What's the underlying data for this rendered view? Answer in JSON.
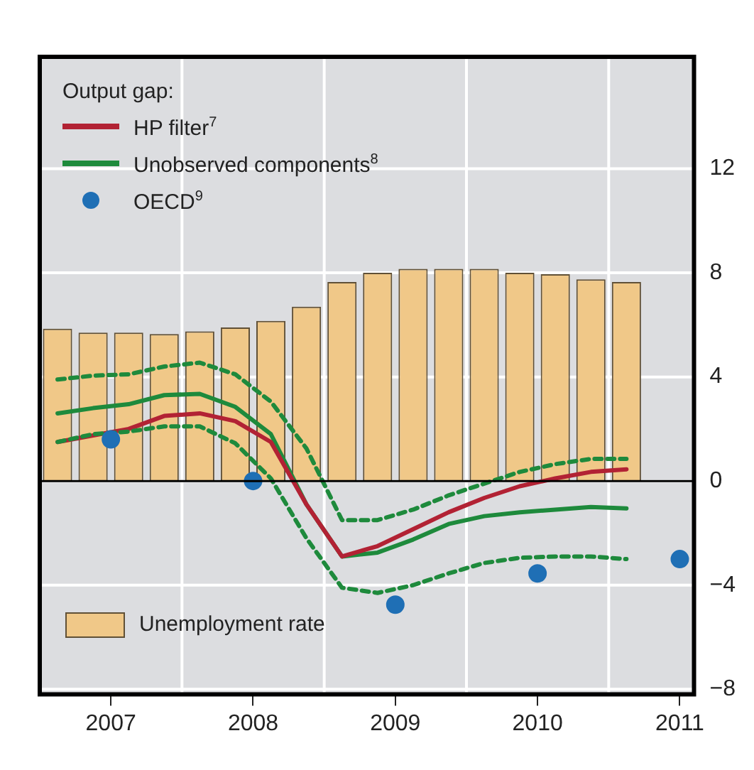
{
  "chart_data": {
    "type": "bar",
    "legend_title": "Output gap:",
    "legend": "left",
    "grid": true,
    "x": [
      2007.125,
      2007.375,
      2007.625,
      2007.875,
      2008.125,
      2008.375,
      2008.625,
      2008.875,
      2009.125,
      2009.375,
      2009.625,
      2009.875,
      2010.125,
      2010.375,
      2010.625,
      2010.875,
      2011.125
    ],
    "xlim": [
      2007,
      2011.6
    ],
    "xticks": [
      {
        "value": 2007.5,
        "label": "2007"
      },
      {
        "value": 2008.5,
        "label": "2008"
      },
      {
        "value": 2009.5,
        "label": "2009"
      },
      {
        "value": 2010.5,
        "label": "2010"
      },
      {
        "value": 2011.5,
        "label": "2011"
      }
    ],
    "ylim": [
      -8.2,
      16.3
    ],
    "yticks": [
      -8,
      -4,
      0,
      4,
      8,
      12
    ],
    "series": [
      {
        "name": "Unemployment rate",
        "color": "#f0c888",
        "values": [
          5.85,
          5.7,
          5.7,
          5.65,
          5.75,
          5.9,
          6.15,
          6.7,
          7.65,
          8.0,
          8.15,
          8.15,
          8.15,
          8.0,
          7.95,
          7.75,
          7.65
        ]
      },
      {
        "name": "HP filter$^{7}$",
        "type": "line",
        "color": "#b22234",
        "values": [
          1.5,
          1.75,
          2.0,
          2.5,
          2.6,
          2.3,
          1.5,
          -0.9,
          -2.9,
          -2.5,
          -1.85,
          -1.2,
          -0.65,
          -0.2,
          0.1,
          0.35,
          0.45
        ]
      },
      {
        "name": "Unobserved components$^{8}$",
        "type": "line",
        "color": "#1e8a3c",
        "values": [
          2.6,
          2.8,
          2.95,
          3.3,
          3.35,
          2.85,
          1.8,
          -0.9,
          -2.9,
          -2.75,
          -2.25,
          -1.65,
          -1.35,
          -1.2,
          -1.1,
          -1.0,
          -1.05
        ]
      },
      {
        "type": "line",
        "color": "#1e8a3c",
        "line_style": "dashed",
        "values": [
          3.9,
          4.05,
          4.1,
          4.4,
          4.55,
          4.1,
          3.05,
          1.25,
          -1.5,
          -1.5,
          -1.1,
          -0.55,
          -0.1,
          0.35,
          0.65,
          0.85,
          0.85
        ]
      },
      {
        "type": "line",
        "color": "#1e8a3c",
        "line_style": "dashed",
        "values": [
          1.5,
          1.8,
          1.9,
          2.1,
          2.1,
          1.45,
          0.1,
          -2.2,
          -4.1,
          -4.3,
          -4.0,
          -3.55,
          -3.15,
          -2.95,
          -2.9,
          -2.9,
          -3.0
        ]
      },
      {
        "name": "OECD$^{9}$",
        "type": "scatter",
        "marker": "circle",
        "color": "#1f6fb5",
        "x": [
          2007.5,
          2008.5,
          2009.5,
          2010.5,
          2011.5
        ],
        "values": [
          1.6,
          0,
          -4.75,
          -3.55,
          -3.0
        ]
      }
    ]
  }
}
